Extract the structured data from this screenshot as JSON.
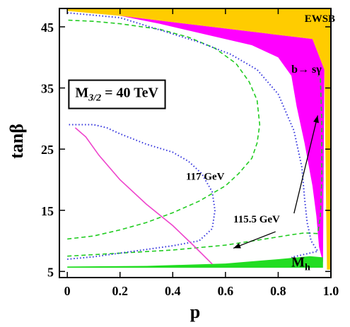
{
  "chart_data": {
    "type": "area",
    "xlabel": "p",
    "ylabel": "tanβ",
    "xlim": [
      -0.03,
      1.0
    ],
    "ylim": [
      4,
      48
    ],
    "x_ticks": [
      "0",
      "0.2",
      "0.4",
      "0.6",
      "0.8",
      "1.0"
    ],
    "x_tick_values": [
      0,
      0.2,
      0.4,
      0.6,
      0.8,
      1.0
    ],
    "y_ticks": [
      "5",
      "15",
      "25",
      "35",
      "45"
    ],
    "y_tick_values": [
      5,
      15,
      25,
      35,
      45
    ],
    "colors": {
      "ewsb": "#ffcc00",
      "bsgamma": "#ff00ff",
      "higgs": "#22dd22",
      "dashed": "#22cc22",
      "dotted": "#3333dd",
      "magenta_line": "#ee44cc"
    },
    "regions": [
      {
        "label": "EWSB",
        "color_key": "ewsb",
        "polygon": [
          [
            0,
            48
          ],
          [
            1.0,
            48
          ],
          [
            1.0,
            5.3
          ],
          [
            0.985,
            5.3
          ],
          [
            0.975,
            38
          ],
          [
            0.93,
            43
          ],
          [
            0.2,
            46.8
          ],
          [
            0,
            47.6
          ]
        ]
      },
      {
        "label": "b→ sγ",
        "color_key": "bsgamma",
        "polygon": [
          [
            0.2,
            46.8
          ],
          [
            0.93,
            43
          ],
          [
            0.975,
            38
          ],
          [
            0.97,
            6.5
          ],
          [
            0.955,
            9
          ],
          [
            0.945,
            14
          ],
          [
            0.93,
            19
          ],
          [
            0.9,
            26
          ],
          [
            0.87,
            32
          ],
          [
            0.85,
            37
          ],
          [
            0.8,
            40
          ],
          [
            0.7,
            42
          ],
          [
            0.55,
            43.5
          ],
          [
            0.35,
            45.5
          ]
        ]
      },
      {
        "label": "M_h",
        "color_key": "higgs",
        "polygon": [
          [
            0,
            5.8
          ],
          [
            0.3,
            5.9
          ],
          [
            0.6,
            6.3
          ],
          [
            0.8,
            7.0
          ],
          [
            0.92,
            7.5
          ],
          [
            0.97,
            7.3
          ],
          [
            0.97,
            5.6
          ],
          [
            0,
            5.6
          ]
        ]
      }
    ],
    "series": [
      {
        "name": "117 GeV",
        "style": "dashed",
        "color_key": "dashed",
        "points": [
          [
            0,
            10.3
          ],
          [
            0.1,
            10.8
          ],
          [
            0.2,
            11.8
          ],
          [
            0.3,
            13
          ],
          [
            0.4,
            14.6
          ],
          [
            0.5,
            16.5
          ],
          [
            0.6,
            19
          ],
          [
            0.65,
            21
          ],
          [
            0.7,
            23.5
          ],
          [
            0.72,
            26
          ],
          [
            0.73,
            29
          ],
          [
            0.72,
            33
          ],
          [
            0.69,
            36
          ],
          [
            0.64,
            39
          ],
          [
            0.56,
            41.5
          ],
          [
            0.46,
            43.3
          ],
          [
            0.35,
            44.6
          ],
          [
            0.2,
            45.5
          ],
          [
            0.1,
            45.9
          ],
          [
            0,
            46.1
          ]
        ]
      },
      {
        "name": "115.5 GeV",
        "style": "dashed",
        "color_key": "dashed",
        "points": [
          [
            0,
            7.5
          ],
          [
            0.2,
            8.0
          ],
          [
            0.4,
            8.5
          ],
          [
            0.6,
            9.3
          ],
          [
            0.75,
            10.3
          ],
          [
            0.85,
            11.0
          ],
          [
            0.9,
            11.3
          ],
          [
            0.95,
            11.2
          ],
          [
            0.96,
            14
          ],
          [
            0.965,
            20
          ],
          [
            0.965,
            30
          ],
          [
            0.96,
            36.5
          ],
          [
            0.95,
            37
          ]
        ]
      },
      {
        "name": "",
        "style": "dotted",
        "color_key": "dotted",
        "points": [
          [
            0,
            7.0
          ],
          [
            0.1,
            7.4
          ],
          [
            0.2,
            8.0
          ],
          [
            0.3,
            8.6
          ],
          [
            0.4,
            9.2
          ],
          [
            0.5,
            10.0
          ],
          [
            0.55,
            12
          ],
          [
            0.56,
            15
          ],
          [
            0.55,
            18
          ],
          [
            0.51,
            21
          ],
          [
            0.46,
            23
          ],
          [
            0.4,
            24.5
          ],
          [
            0.3,
            25.8
          ],
          [
            0.2,
            27.5
          ],
          [
            0.15,
            28.5
          ],
          [
            0.1,
            29
          ],
          [
            0,
            29
          ]
        ]
      },
      {
        "name": "",
        "style": "dotted",
        "color_key": "dotted",
        "points": [
          [
            0,
            47.3
          ],
          [
            0.2,
            46.5
          ],
          [
            0.35,
            44.5
          ],
          [
            0.5,
            42.5
          ],
          [
            0.62,
            40.5
          ],
          [
            0.72,
            38
          ],
          [
            0.8,
            34
          ],
          [
            0.86,
            28
          ],
          [
            0.89,
            22
          ],
          [
            0.9,
            17
          ],
          [
            0.91,
            13
          ],
          [
            0.925,
            10
          ],
          [
            0.95,
            8.3
          ],
          [
            0.85,
            7.3
          ]
        ]
      },
      {
        "name": "",
        "style": "solid",
        "color_key": "magenta_line",
        "points": [
          [
            0.03,
            28.5
          ],
          [
            0.07,
            27
          ],
          [
            0.12,
            24
          ],
          [
            0.2,
            20
          ],
          [
            0.3,
            16
          ],
          [
            0.4,
            12.5
          ],
          [
            0.48,
            9.2
          ],
          [
            0.55,
            6.2
          ]
        ]
      }
    ],
    "annotations": [
      {
        "text": "EWSB",
        "at": [
          0.9,
          45.8
        ],
        "size": 15
      },
      {
        "text": "b→ sγ",
        "at": [
          0.85,
          37.5
        ],
        "size": 16
      },
      {
        "text": "M",
        "sub": "3/2",
        "rest": " = 40 TeV",
        "at": [
          0.03,
          33.5
        ],
        "size": 20,
        "boxed": true
      },
      {
        "text": "117 GeV",
        "at": [
          0.45,
          20.0
        ],
        "size": 15
      },
      {
        "text": "115.5 GeV",
        "at": [
          0.63,
          13.0
        ],
        "size": 15
      },
      {
        "text": "M",
        "sub": "h",
        "at": [
          0.85,
          5.8
        ],
        "size": 20
      }
    ],
    "arrows": [
      {
        "from": [
          0.86,
          14.5
        ],
        "to": [
          0.95,
          30.5
        ]
      },
      {
        "from": [
          0.79,
          11.5
        ],
        "to": [
          0.63,
          8.8
        ]
      }
    ],
    "grid": false,
    "legend": "none"
  }
}
